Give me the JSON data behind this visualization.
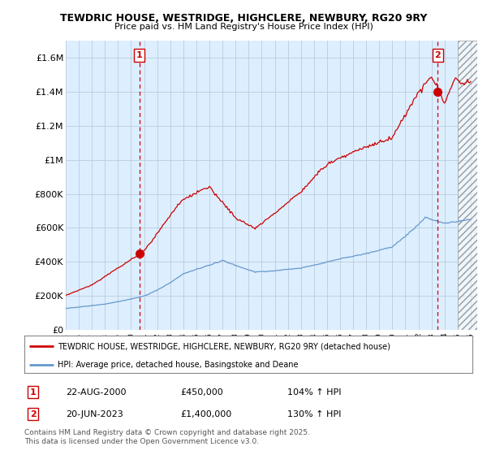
{
  "title": "TEWDRIC HOUSE, WESTRIDGE, HIGHCLERE, NEWBURY, RG20 9RY",
  "subtitle": "Price paid vs. HM Land Registry's House Price Index (HPI)",
  "ylabel_ticks": [
    "£0",
    "£200K",
    "£400K",
    "£600K",
    "£800K",
    "£1M",
    "£1.2M",
    "£1.4M",
    "£1.6M"
  ],
  "ylim": [
    0,
    1700000
  ],
  "xlim_start": 1995.0,
  "xlim_end": 2026.5,
  "sale1_x": 2000.64,
  "sale1_y": 450000,
  "sale1_label": "1",
  "sale2_x": 2023.47,
  "sale2_y": 1400000,
  "sale2_label": "2",
  "red_line_color": "#cc0000",
  "blue_line_color": "#6699cc",
  "marker_color": "#cc0000",
  "vline_color": "#cc0000",
  "grid_color": "#bbccdd",
  "bg_color": "#ffffff",
  "plot_bg_color": "#ddeeff",
  "legend_line1": "TEWDRIC HOUSE, WESTRIDGE, HIGHCLERE, NEWBURY, RG20 9RY (detached house)",
  "legend_line2": "HPI: Average price, detached house, Basingstoke and Deane",
  "annotation1_num": "1",
  "annotation1_date": "22-AUG-2000",
  "annotation1_price": "£450,000",
  "annotation1_hpi": "104% ↑ HPI",
  "annotation2_num": "2",
  "annotation2_date": "20-JUN-2023",
  "annotation2_price": "£1,400,000",
  "annotation2_hpi": "130% ↑ HPI",
  "footnote": "Contains HM Land Registry data © Crown copyright and database right 2025.\nThis data is licensed under the Open Government Licence v3.0.",
  "hatch_start": 2025.0
}
